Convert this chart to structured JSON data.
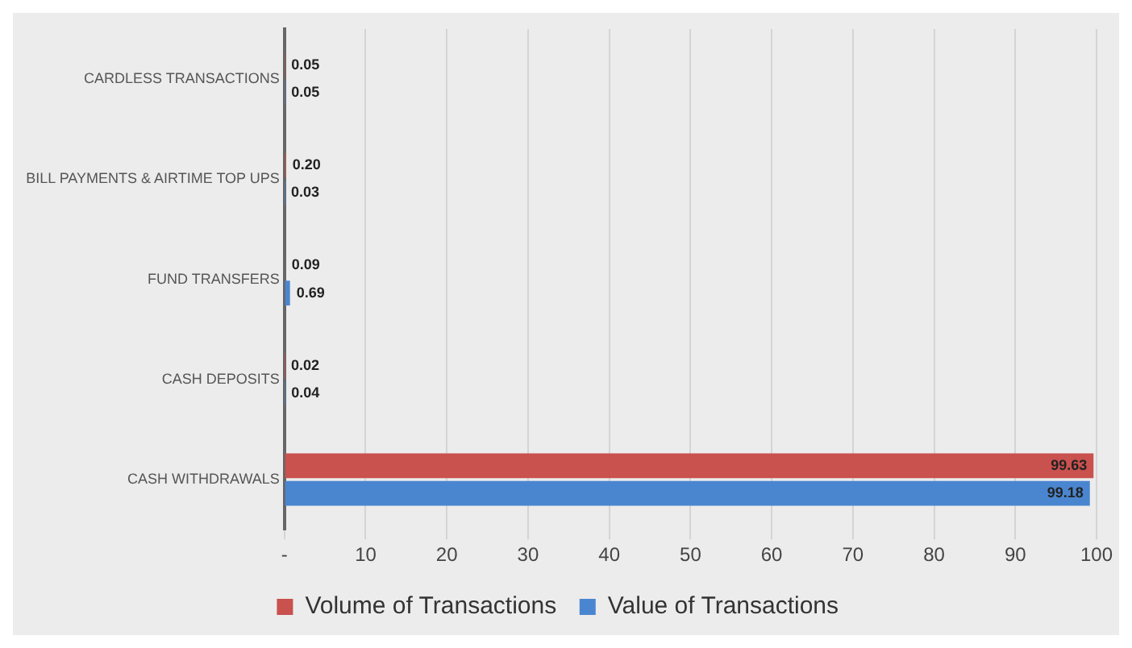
{
  "chart_data": {
    "type": "bar",
    "orientation": "horizontal",
    "categories": [
      "CARDLESS TRANSACTIONS",
      "BILL PAYMENTS & AIRTIME TOP UPS",
      "FUND TRANSFERS",
      "CASH DEPOSITS",
      "CASH WITHDRAWALS"
    ],
    "series": [
      {
        "name": "Volume of Transactions",
        "color": "#c9514e",
        "values": [
          0.05,
          0.2,
          0.09,
          0.02,
          99.63
        ],
        "value_labels": [
          "0.05",
          "0.20",
          "0.09",
          "0.02",
          "99.63"
        ]
      },
      {
        "name": "Value of Transactions",
        "color": "#4a86d0",
        "values": [
          0.05,
          0.03,
          0.69,
          0.04,
          99.18
        ],
        "value_labels": [
          "0.05",
          "0.03",
          "0.69",
          "0.04",
          "99.18"
        ]
      }
    ],
    "xlim": [
      0,
      100
    ],
    "xticks": [
      {
        "value": 0,
        "label": "-"
      },
      10,
      20,
      30,
      40,
      50,
      60,
      70,
      80,
      90,
      100
    ],
    "grid": "x",
    "legend": "bottom"
  }
}
